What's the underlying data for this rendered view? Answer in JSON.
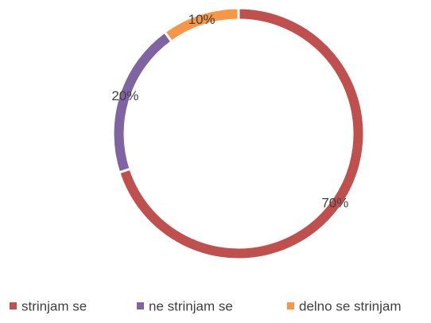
{
  "chart_data": {
    "type": "donut",
    "categories": [
      "strinjam se",
      "ne strinjam se",
      "delno se strinjam"
    ],
    "values": [
      70,
      20,
      10
    ],
    "value_labels": [
      "70%",
      "20%",
      "10%"
    ],
    "colors": [
      "#c0504d",
      "#8064a2",
      "#f79646"
    ],
    "legend": "bottom"
  }
}
